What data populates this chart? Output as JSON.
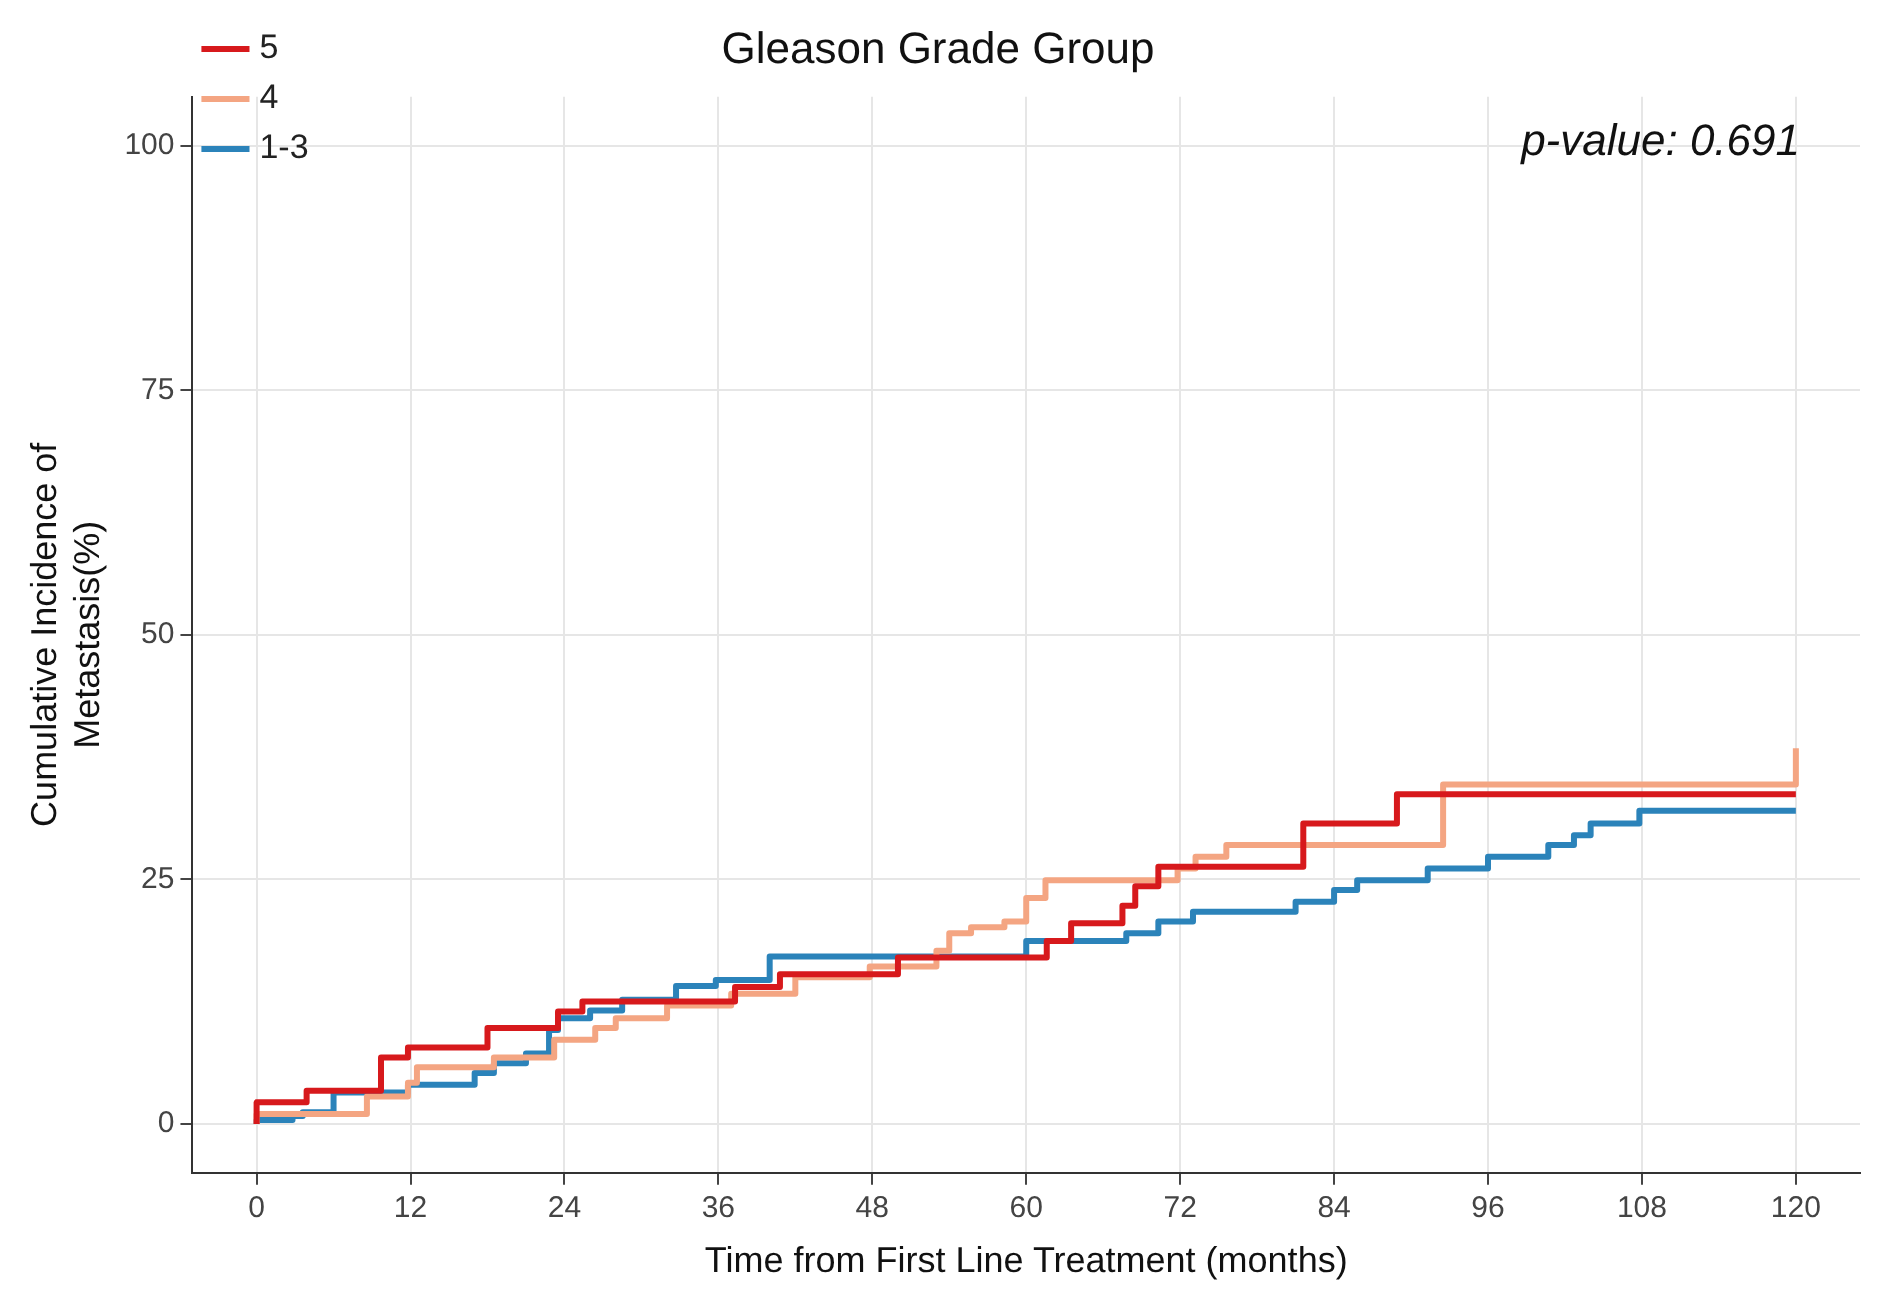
{
  "chart_data": {
    "type": "step",
    "title": "Gleason Grade Group",
    "xlabel": "Time from First Line Treatment (months)",
    "ylabel": "Cumulative Incidence of\nMetastasis(%)",
    "annotations": [
      "p-value: 0.691"
    ],
    "xlim": [
      -5,
      125
    ],
    "xticks": [
      0,
      12,
      24,
      36,
      48,
      60,
      72,
      84,
      96,
      108,
      120
    ],
    "ylim": [
      -5,
      105
    ],
    "yticks": [
      0,
      25,
      50,
      75,
      100
    ],
    "grid": true,
    "legend": "top left",
    "series": [
      {
        "name": "5",
        "color": "#d7191c",
        "x": [
          0,
          3.9,
          9.7,
          11.8,
          18,
          23.5,
          25.4,
          37.3,
          40.8,
          50,
          61.6,
          63.5,
          67.5,
          68.5,
          70.3,
          81.6,
          88.9,
          101.5,
          120
        ],
        "values": [
          0,
          2.2,
          3.4,
          6.8,
          7.8,
          9.8,
          11.5,
          12.5,
          14,
          15.3,
          17,
          18.7,
          20.5,
          22.3,
          24.3,
          26.3,
          30.7,
          33.7,
          33.7
        ]
      },
      {
        "name": "4",
        "color": "#f4a582",
        "x": [
          0,
          8.6,
          11.8,
          12.5,
          18.5,
          23.2,
          26.4,
          28,
          32,
          37,
          42,
          47.8,
          53,
          54,
          55.7,
          58.3,
          60,
          61.5,
          71.8,
          73.2,
          75.6,
          92.5,
          108.2,
          120,
          120
        ],
        "values": [
          0,
          1,
          2.8,
          4.2,
          5.8,
          6.8,
          8.6,
          9.8,
          10.8,
          12.1,
          13.3,
          15,
          16.1,
          17.7,
          19.5,
          20.1,
          20.7,
          23.1,
          24.9,
          26.1,
          27.3,
          28.5,
          34.7,
          34.7,
          38.4
        ]
      },
      {
        "name": "1-3",
        "color": "#2b83ba",
        "x": [
          0,
          2.8,
          3.6,
          6,
          11.8,
          17,
          18.5,
          21,
          22.8,
          23.5,
          26,
          28.5,
          32.7,
          35.8,
          40,
          60,
          67.8,
          70.3,
          73,
          81,
          84,
          85.8,
          91.3,
          96,
          100.7,
          102.7,
          104,
          107.8,
          109.8,
          120
        ],
        "values": [
          0,
          0.4,
          0.8,
          1.2,
          3.2,
          4,
          5.2,
          6.2,
          7.2,
          9.6,
          10.8,
          11.6,
          12.7,
          14.1,
          14.7,
          17.1,
          18.7,
          19.5,
          20.7,
          21.7,
          22.7,
          23.9,
          24.9,
          26.1,
          27.3,
          28.5,
          29.5,
          30.7,
          32,
          32
        ]
      }
    ]
  }
}
